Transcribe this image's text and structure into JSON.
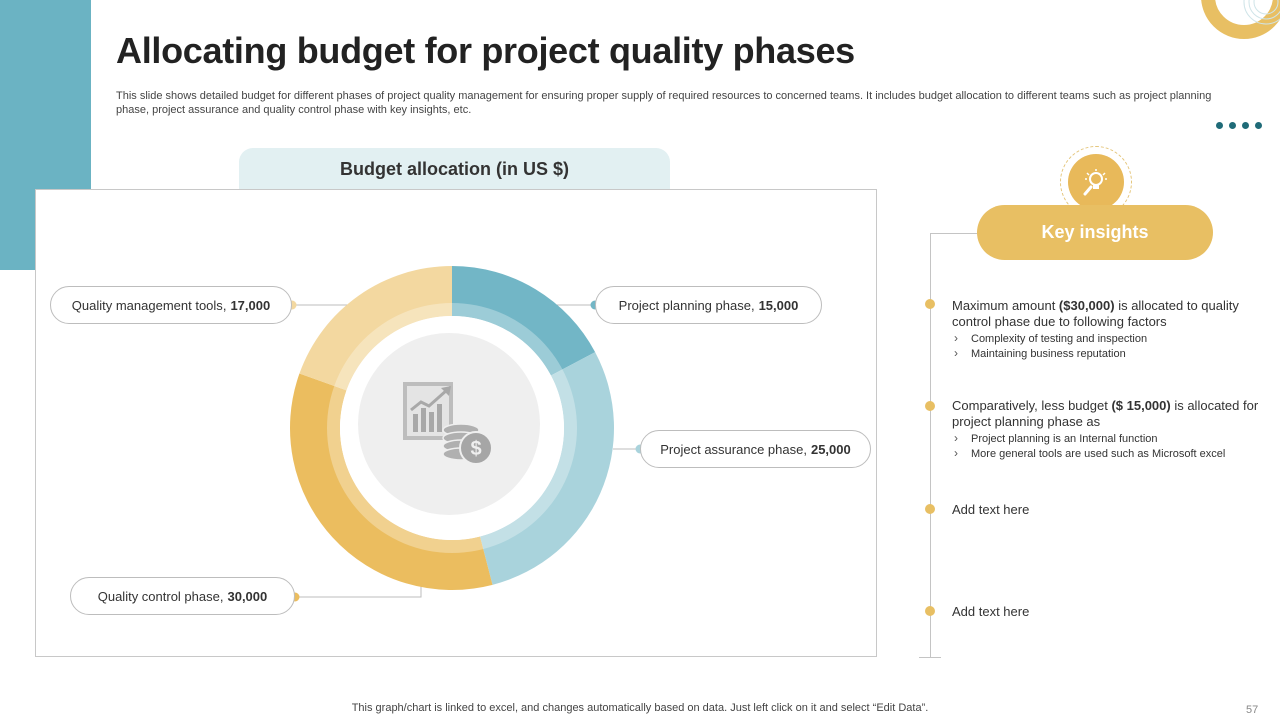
{
  "title": "Allocating budget for project quality phases",
  "subtitle": "This slide shows detailed budget for different phases of project quality management for ensuring proper supply of required resources to concerned teams. It includes budget allocation to different teams such as project planning phase, project assurance and quality control phase with key insights, etc.",
  "chart_data": {
    "type": "pie",
    "variant": "donut",
    "title": "Budget allocation (in US $)",
    "unit": "US $",
    "slices": [
      {
        "label": "Project planning phase",
        "value": 15000,
        "value_label": "15,000",
        "color": "#72b6c6"
      },
      {
        "label": "Project assurance phase",
        "value": 25000,
        "value_label": "25,000",
        "color": "#a9d3dc"
      },
      {
        "label": "Quality control phase",
        "value": 30000,
        "value_label": "30,000",
        "color": "#ebbd5f"
      },
      {
        "label": "Quality management tools",
        "value": 17000,
        "value_label": "17,000",
        "color": "#f3d8a0"
      }
    ],
    "center_icon": "budget-chart-coins-icon"
  },
  "insights": {
    "heading": "Key insights",
    "icon": "lightbulb-search-icon",
    "items": [
      {
        "pre": "Maximum amount ",
        "bold": "($30,000)",
        "post": " is allocated to quality control phase due  to following factors",
        "bullets": [
          "Complexity of testing and inspection",
          "Maintaining business reputation"
        ]
      },
      {
        "pre": "Comparatively, less budget ",
        "bold": "($ 15,000)",
        "post": " is allocated for project planning phase as",
        "bullets": [
          "Project planning is an Internal function",
          "More general tools are used such as Microsoft excel"
        ]
      },
      {
        "text": "Add text here"
      },
      {
        "text": "Add text here"
      }
    ]
  },
  "footer": "This graph/chart is linked to excel, and changes automatically based on data. Just left click on it and select “Edit Data”.",
  "page_number": "57",
  "colors": {
    "accent_teal": "#6bb3c3",
    "accent_gold": "#e8bf63",
    "dark_teal": "#1f6b78"
  }
}
